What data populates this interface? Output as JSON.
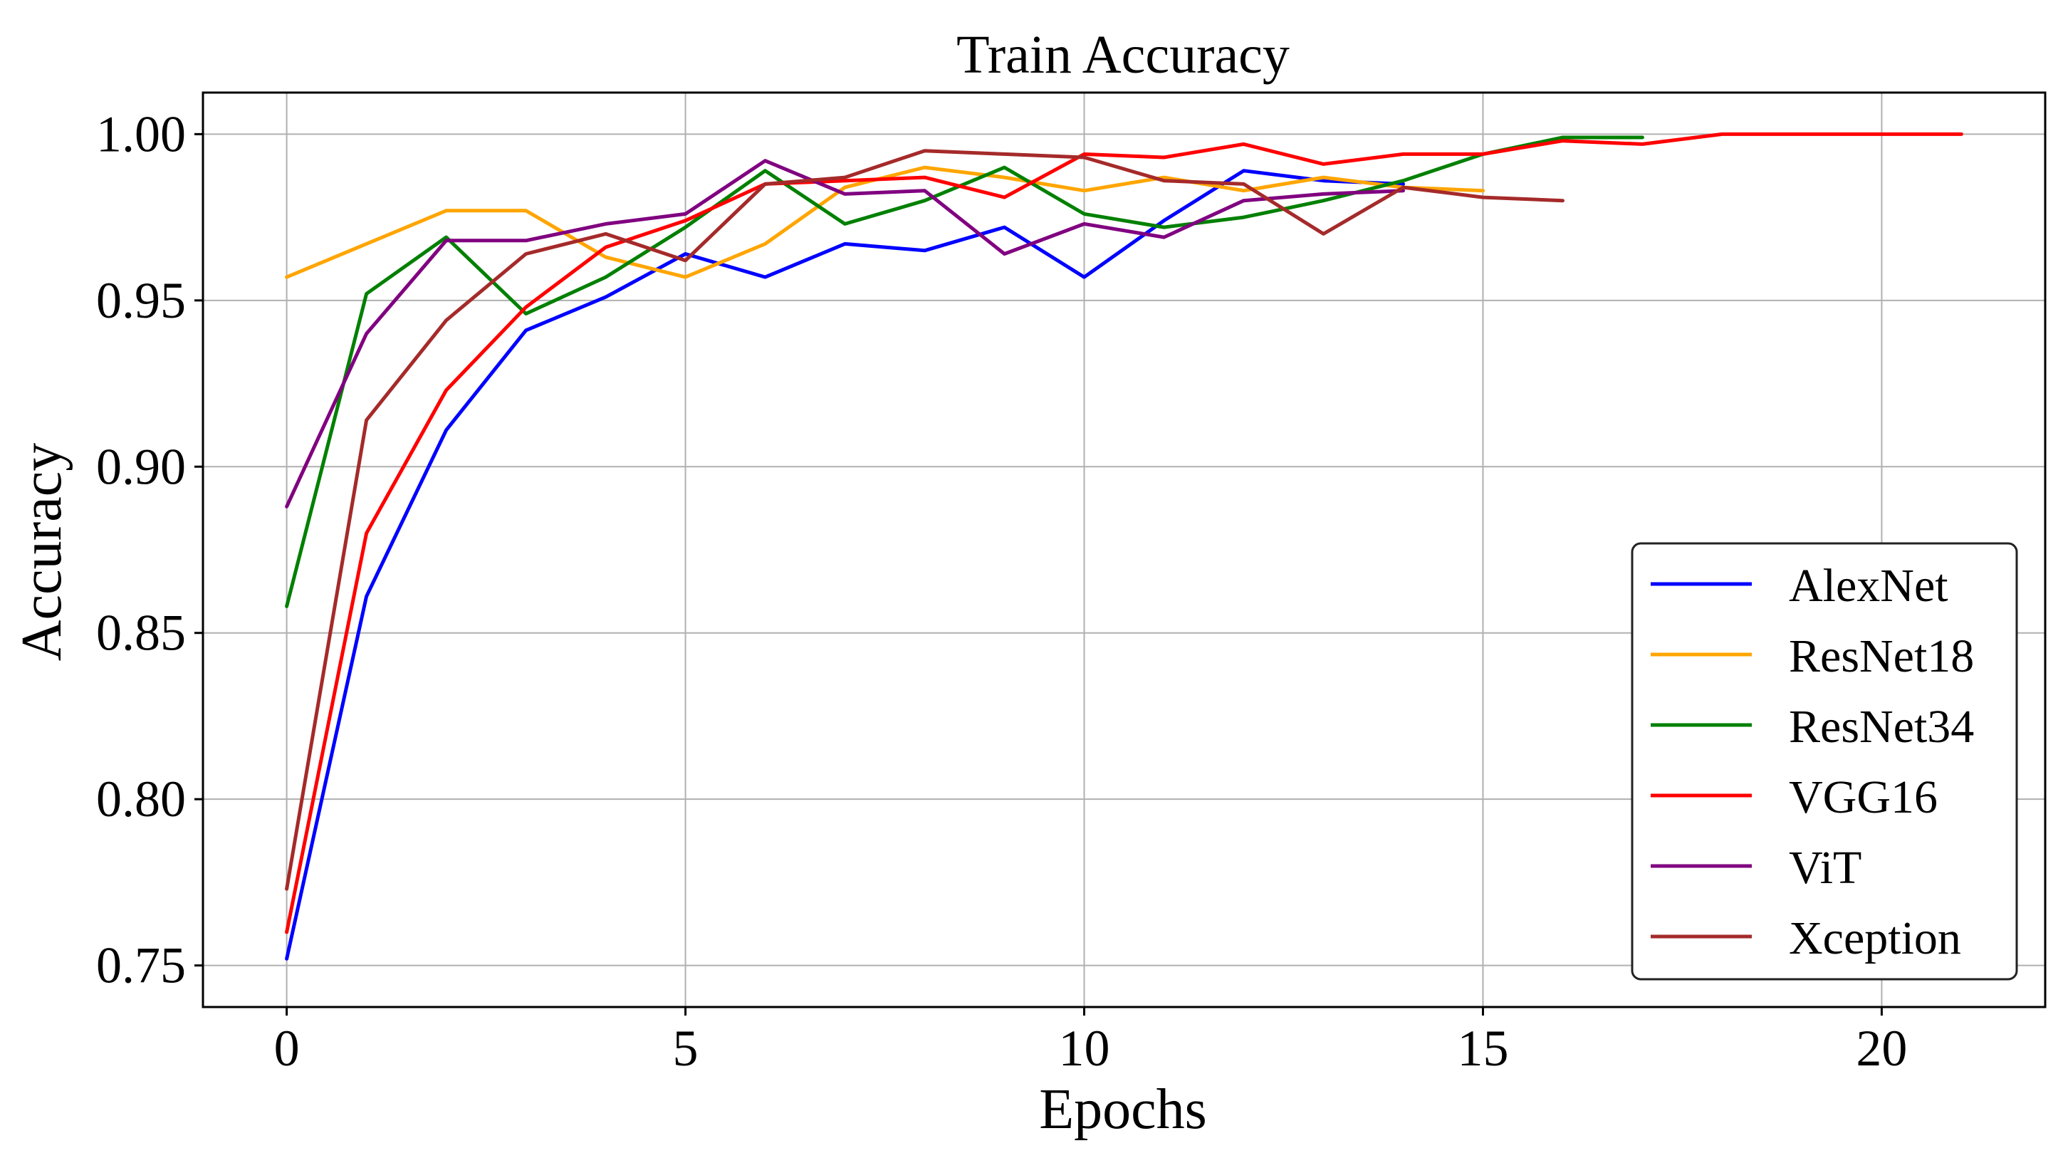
{
  "chart_data": {
    "type": "line",
    "title": "Train Accuracy",
    "xlabel": "Epochs",
    "ylabel": "Accuracy",
    "xlim": [
      -1.05,
      22.05
    ],
    "ylim": [
      0.7375,
      1.0125
    ],
    "x_ticks": [
      0,
      5,
      10,
      15,
      20
    ],
    "y_ticks": [
      0.75,
      0.8,
      0.85,
      0.9,
      0.95,
      1.0
    ],
    "x_tick_labels": [
      "0",
      "5",
      "10",
      "15",
      "20"
    ],
    "y_tick_labels": [
      "0.75",
      "0.80",
      "0.85",
      "0.90",
      "0.95",
      "1.00"
    ],
    "grid": true,
    "legend_position": "lower-right",
    "series": [
      {
        "name": "AlexNet",
        "color": "#0000ff",
        "x": [
          0,
          1,
          2,
          3,
          4,
          5,
          6,
          7,
          8,
          9,
          10,
          11,
          12,
          13,
          14
        ],
        "values": [
          0.752,
          0.861,
          0.911,
          0.941,
          0.951,
          0.964,
          0.957,
          0.967,
          0.965,
          0.972,
          0.957,
          0.974,
          0.989,
          0.986,
          0.985
        ]
      },
      {
        "name": "ResNet18",
        "color": "#ffa500",
        "x": [
          0,
          1,
          2,
          3,
          4,
          5,
          6,
          7,
          8,
          9,
          10,
          11,
          12,
          13,
          14,
          15
        ],
        "values": [
          0.957,
          0.967,
          0.977,
          0.977,
          0.963,
          0.957,
          0.967,
          0.984,
          0.99,
          0.987,
          0.983,
          0.987,
          0.983,
          0.987,
          0.984,
          0.983
        ]
      },
      {
        "name": "ResNet34",
        "color": "#008000",
        "x": [
          0,
          1,
          2,
          3,
          4,
          5,
          6,
          7,
          8,
          9,
          10,
          11,
          12,
          13,
          14,
          15,
          16,
          17
        ],
        "values": [
          0.858,
          0.952,
          0.969,
          0.946,
          0.957,
          0.972,
          0.989,
          0.973,
          0.98,
          0.99,
          0.976,
          0.972,
          0.975,
          0.98,
          0.986,
          0.994,
          0.999,
          0.999
        ]
      },
      {
        "name": "VGG16",
        "color": "#ff0000",
        "x": [
          0,
          1,
          2,
          3,
          4,
          5,
          6,
          7,
          8,
          9,
          10,
          11,
          12,
          13,
          14,
          15,
          16,
          17,
          18,
          19,
          20,
          21
        ],
        "values": [
          0.76,
          0.88,
          0.923,
          0.948,
          0.966,
          0.974,
          0.985,
          0.986,
          0.987,
          0.981,
          0.994,
          0.993,
          0.997,
          0.991,
          0.994,
          0.994,
          0.998,
          0.997,
          1.0,
          1.0,
          1.0,
          1.0
        ]
      },
      {
        "name": "ViT",
        "color": "#800080",
        "x": [
          0,
          1,
          2,
          3,
          4,
          5,
          6,
          7,
          8,
          9,
          10,
          11,
          12,
          13,
          14
        ],
        "values": [
          0.888,
          0.94,
          0.968,
          0.968,
          0.973,
          0.976,
          0.992,
          0.982,
          0.983,
          0.964,
          0.973,
          0.969,
          0.98,
          0.982,
          0.983
        ]
      },
      {
        "name": "Xception",
        "color": "#a52a2a",
        "x": [
          0,
          1,
          2,
          3,
          4,
          5,
          6,
          7,
          8,
          9,
          10,
          11,
          12,
          13,
          14,
          15,
          16
        ],
        "values": [
          0.773,
          0.914,
          0.944,
          0.964,
          0.97,
          0.962,
          0.985,
          0.987,
          0.995,
          0.994,
          0.993,
          0.986,
          0.985,
          0.97,
          0.984,
          0.981,
          0.98
        ]
      }
    ]
  }
}
